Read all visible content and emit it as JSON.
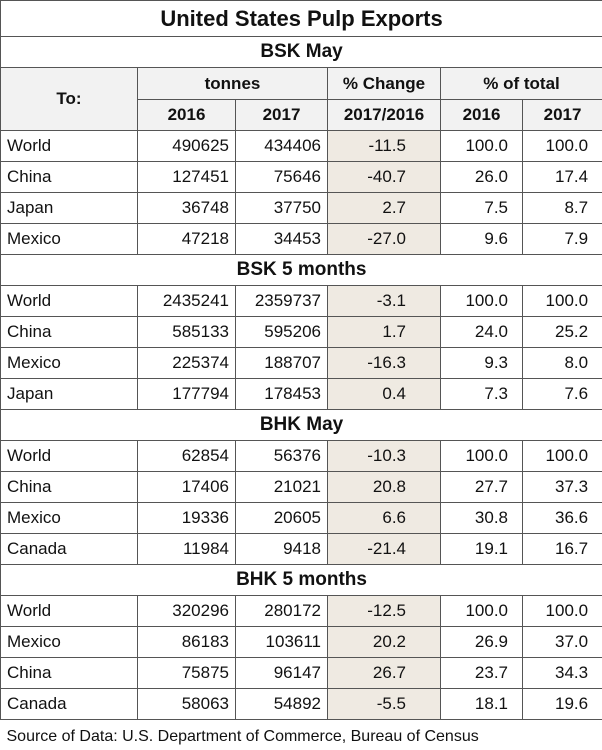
{
  "title": "United States Pulp Exports",
  "header": {
    "to": "To:",
    "tonnes": "tonnes",
    "change": "% Change",
    "share": "% of total",
    "tonnes_years": [
      "2016",
      "2017"
    ],
    "change_period": "2017/2016",
    "share_years": [
      "2016",
      "2017"
    ]
  },
  "sections": [
    {
      "title": "BSK May",
      "rows": [
        [
          "World",
          "490625",
          "434406",
          "-11.5",
          "100.0",
          "100.0"
        ],
        [
          "China",
          "127451",
          "75646",
          "-40.7",
          "26.0",
          "17.4"
        ],
        [
          "Japan",
          "36748",
          "37750",
          "2.7",
          "7.5",
          "8.7"
        ],
        [
          "Mexico",
          "47218",
          "34453",
          "-27.0",
          "9.6",
          "7.9"
        ]
      ]
    },
    {
      "title": "BSK 5 months",
      "rows": [
        [
          "World",
          "2435241",
          "2359737",
          "-3.1",
          "100.0",
          "100.0"
        ],
        [
          "China",
          "585133",
          "595206",
          "1.7",
          "24.0",
          "25.2"
        ],
        [
          "Mexico",
          "225374",
          "188707",
          "-16.3",
          "9.3",
          "8.0"
        ],
        [
          "Japan",
          "177794",
          "178453",
          "0.4",
          "7.3",
          "7.6"
        ]
      ]
    },
    {
      "title": "BHK May",
      "rows": [
        [
          "World",
          "62854",
          "56376",
          "-10.3",
          "100.0",
          "100.0"
        ],
        [
          "China",
          "17406",
          "21021",
          "20.8",
          "27.7",
          "37.3"
        ],
        [
          "Mexico",
          "19336",
          "20605",
          "6.6",
          "30.8",
          "36.6"
        ],
        [
          "Canada",
          "11984",
          "9418",
          "-21.4",
          "19.1",
          "16.7"
        ]
      ]
    },
    {
      "title": "BHK 5 months",
      "rows": [
        [
          "World",
          "320296",
          "280172",
          "-12.5",
          "100.0",
          "100.0"
        ],
        [
          "Mexico",
          "86183",
          "103611",
          "20.2",
          "26.9",
          "37.0"
        ],
        [
          "China",
          "75875",
          "96147",
          "26.7",
          "23.7",
          "34.3"
        ],
        [
          "Canada",
          "58063",
          "54892",
          "-5.5",
          "18.1",
          "19.6"
        ]
      ]
    }
  ],
  "source": "Source of Data: U.S. Department of Commerce, Bureau of Census"
}
